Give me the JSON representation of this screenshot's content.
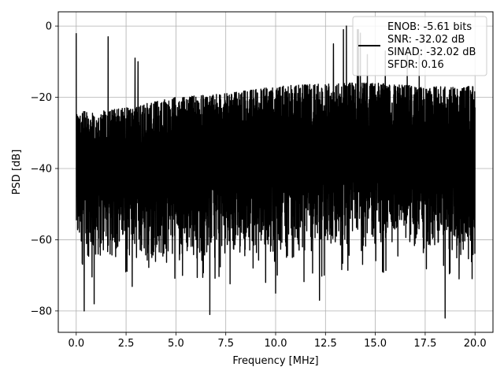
{
  "chart_data": {
    "type": "line",
    "title": "",
    "xlabel": "Frequency [MHz]",
    "ylabel": "PSD [dB]",
    "xlim": [
      -0.9,
      20.9
    ],
    "ylim": [
      -86,
      4
    ],
    "xticks": [
      0,
      2.5,
      5,
      7.5,
      10,
      12.5,
      15,
      17.5,
      20
    ],
    "xtick_labels": [
      "0.0",
      "2.5",
      "5.0",
      "7.5",
      "10.0",
      "12.5",
      "15.0",
      "17.5",
      "20.0"
    ],
    "yticks": [
      0,
      -20,
      -40,
      -60,
      -80
    ],
    "ytick_labels": [
      "0",
      "−20",
      "−40",
      "−60",
      "−80"
    ],
    "grid": true,
    "legend_position": "upper-right",
    "line_color": "#000000",
    "series": [
      {
        "name": "ENOB: -5.61 bits\nSNR: -32.02 dB\nSINAD: -32.02 dB\nSFDR: 0.16",
        "x_range": [
          0,
          20
        ],
        "upper_envelope": [
          [
            0,
            -24
          ],
          [
            1,
            -24
          ],
          [
            2.5,
            -23
          ],
          [
            5,
            -20
          ],
          [
            7.5,
            -19
          ],
          [
            10,
            -17
          ],
          [
            12.5,
            -16
          ],
          [
            15,
            -16
          ],
          [
            17.5,
            -17
          ],
          [
            20,
            -17
          ]
        ],
        "lower_envelope": [
          [
            0,
            -64
          ],
          [
            1,
            -66
          ],
          [
            2.5,
            -66
          ],
          [
            5,
            -66
          ],
          [
            7.5,
            -65
          ],
          [
            10,
            -65
          ],
          [
            12.5,
            -63
          ],
          [
            15,
            -62
          ],
          [
            17.5,
            -64
          ],
          [
            20,
            -66
          ]
        ],
        "peaks": [
          {
            "x": 0.0,
            "y": -2
          },
          {
            "x": 1.6,
            "y": -3
          },
          {
            "x": 2.95,
            "y": -9
          },
          {
            "x": 3.1,
            "y": -10
          },
          {
            "x": 12.9,
            "y": -5
          },
          {
            "x": 13.4,
            "y": -1
          },
          {
            "x": 13.55,
            "y": 0
          },
          {
            "x": 14.1,
            "y": -1
          },
          {
            "x": 14.15,
            "y": -1
          },
          {
            "x": 14.25,
            "y": -2
          },
          {
            "x": 14.6,
            "y": -8
          },
          {
            "x": 15.5,
            "y": -7
          },
          {
            "x": 16.6,
            "y": -8
          },
          {
            "x": 17.2,
            "y": -8
          }
        ],
        "dips": [
          {
            "x": 0.4,
            "y": -80
          },
          {
            "x": 0.9,
            "y": -78
          },
          {
            "x": 6.7,
            "y": -81
          },
          {
            "x": 10.0,
            "y": -75
          },
          {
            "x": 12.2,
            "y": -77
          },
          {
            "x": 18.5,
            "y": -82
          },
          {
            "x": 19.2,
            "y": -71
          }
        ]
      }
    ]
  }
}
